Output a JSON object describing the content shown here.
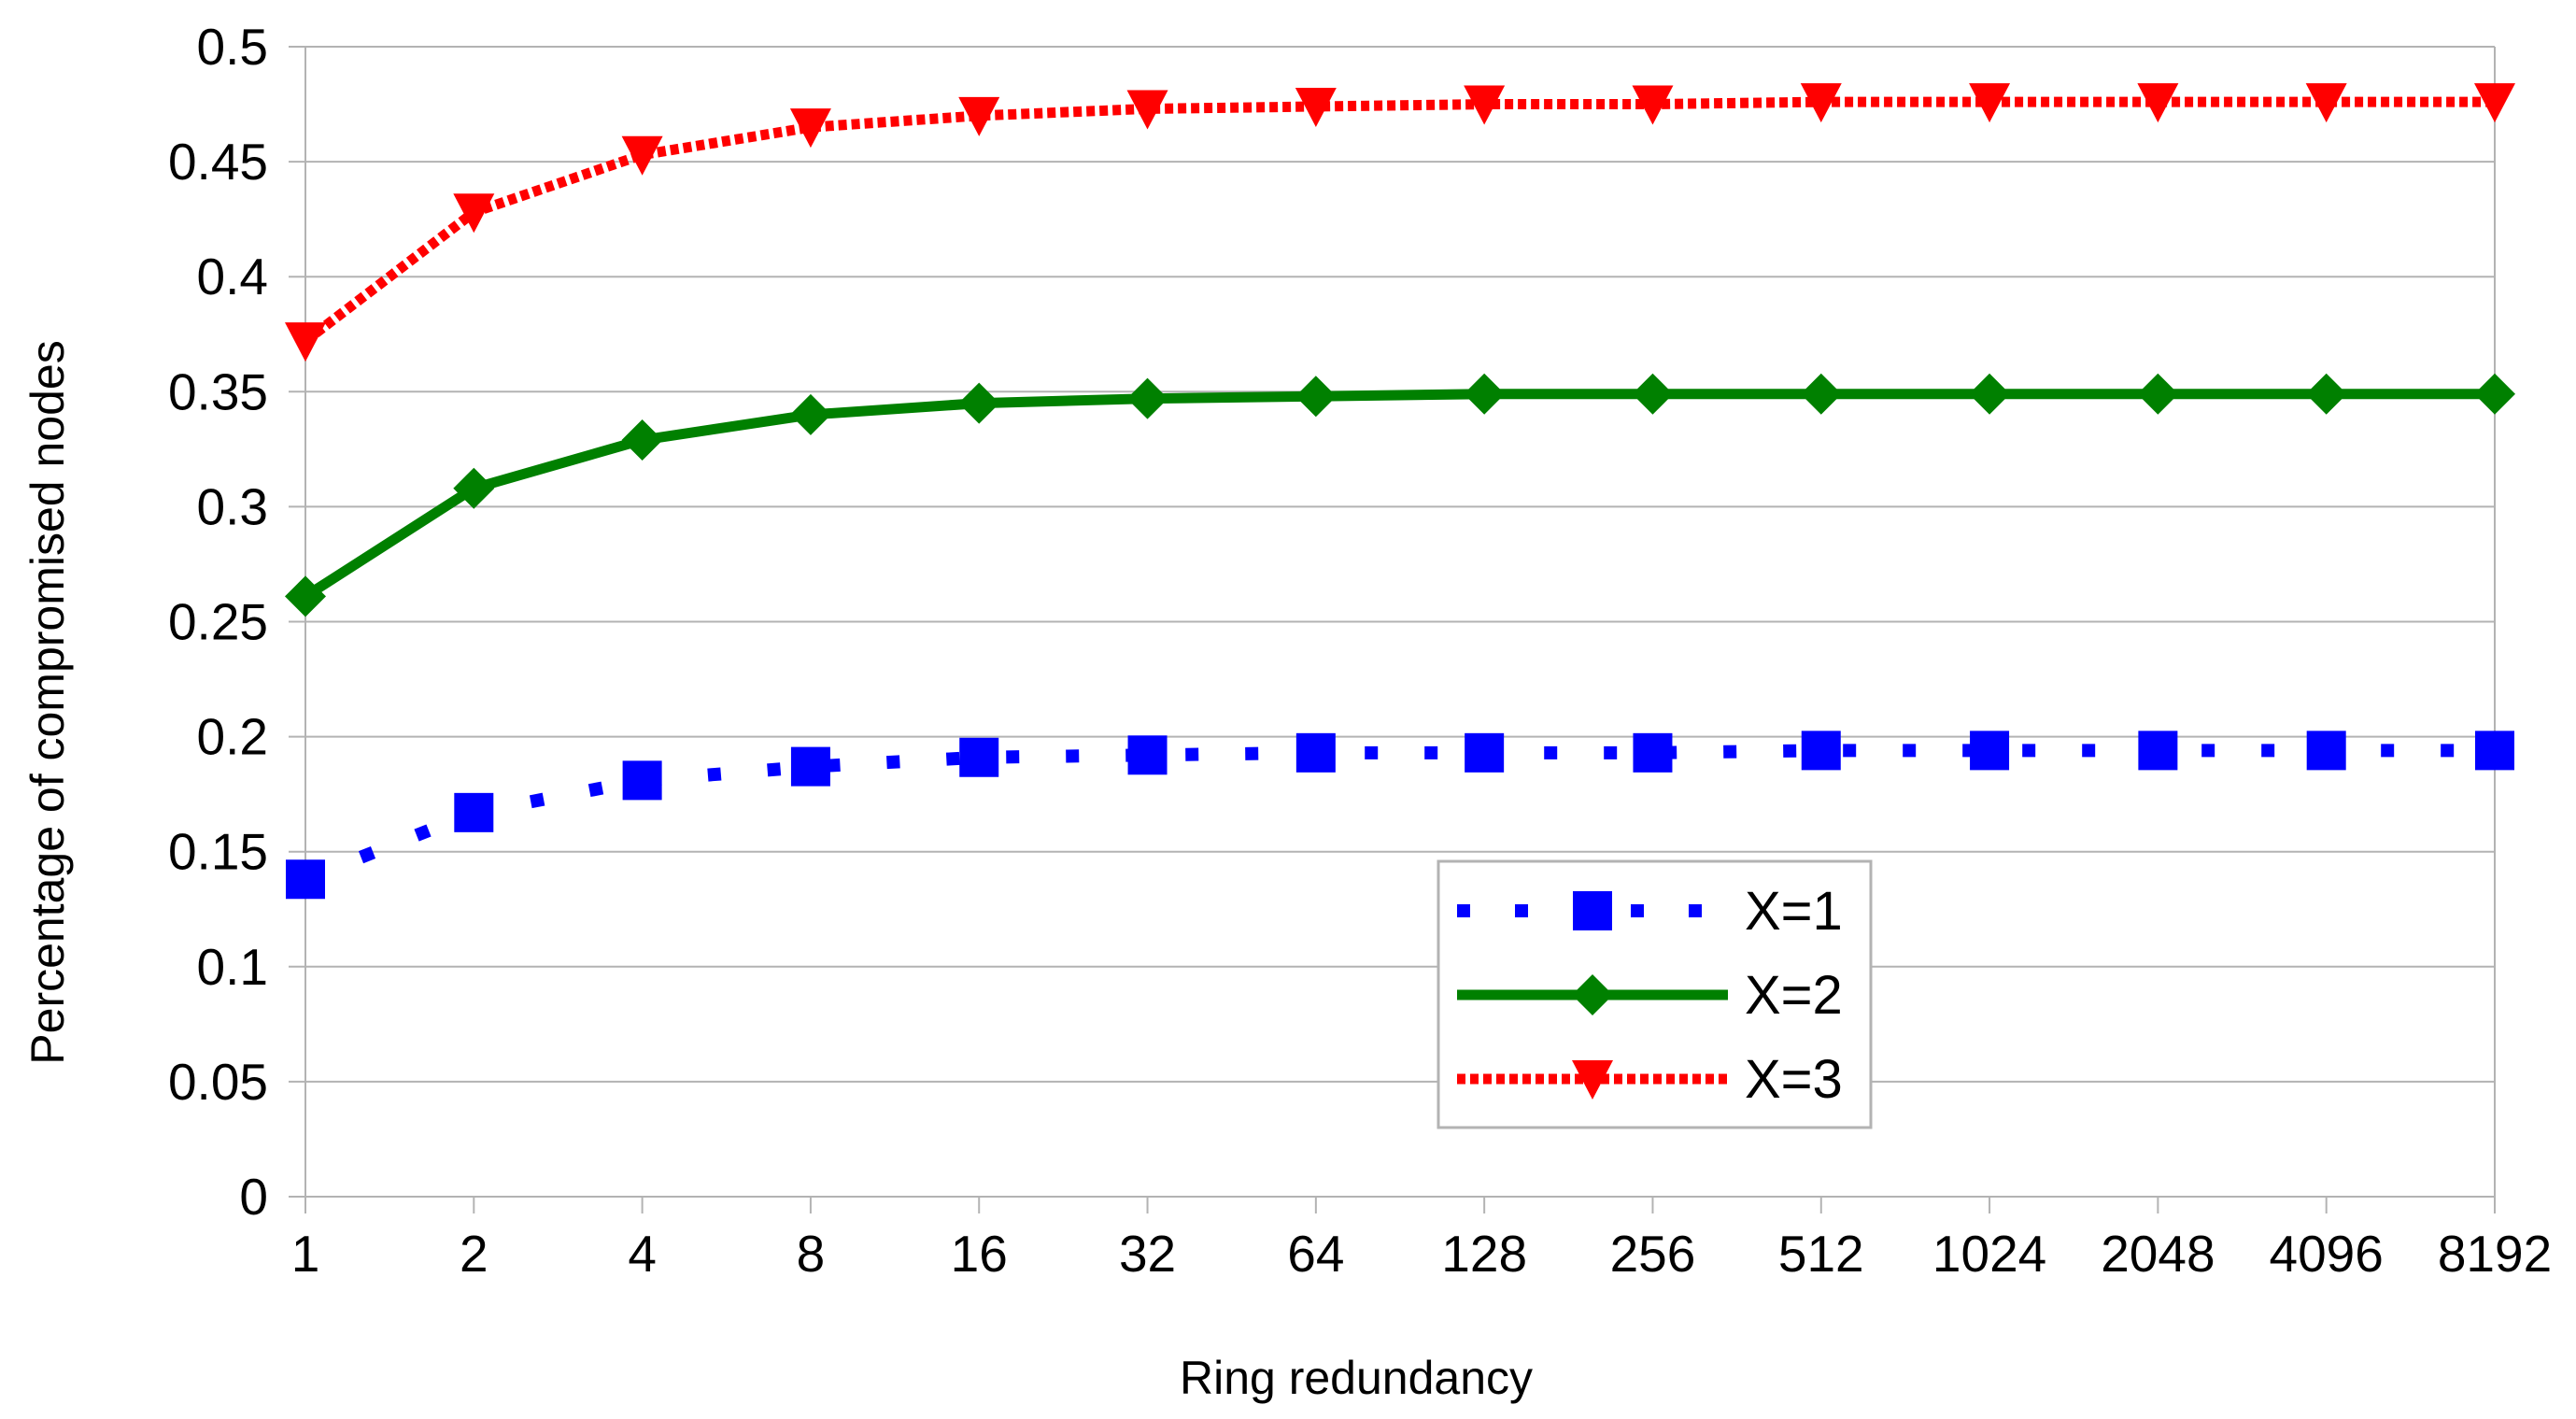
{
  "chart_data": {
    "type": "line",
    "title": "",
    "xlabel": "Ring redundancy",
    "ylabel": "Percentage of compromised nodes",
    "categories": [
      "1",
      "2",
      "4",
      "8",
      "16",
      "32",
      "64",
      "128",
      "256",
      "512",
      "1024",
      "2048",
      "4096",
      "8192"
    ],
    "ylim": [
      0,
      0.5
    ],
    "yticks": [
      "0",
      "0.05",
      "0.1",
      "0.15",
      "0.2",
      "0.25",
      "0.3",
      "0.35",
      "0.4",
      "0.45",
      "0.5"
    ],
    "grid": true,
    "legend_position": "bottom-right",
    "series": [
      {
        "name": "X=1",
        "color": "#0000ff",
        "line_style": "dotted",
        "marker": "square",
        "values": [
          0.138,
          0.167,
          0.181,
          0.187,
          0.191,
          0.192,
          0.193,
          0.193,
          0.193,
          0.194,
          0.194,
          0.194,
          0.194,
          0.194
        ]
      },
      {
        "name": "X=2",
        "color": "#008000",
        "line_style": "solid",
        "marker": "diamond",
        "values": [
          0.261,
          0.308,
          0.329,
          0.34,
          0.345,
          0.347,
          0.348,
          0.349,
          0.349,
          0.349,
          0.349,
          0.349,
          0.349,
          0.349
        ]
      },
      {
        "name": "X=3",
        "color": "#ff0000",
        "line_style": "dashed",
        "marker": "triangle-down",
        "values": [
          0.372,
          0.428,
          0.453,
          0.465,
          0.47,
          0.473,
          0.474,
          0.475,
          0.475,
          0.476,
          0.476,
          0.476,
          0.476,
          0.476
        ]
      }
    ]
  }
}
